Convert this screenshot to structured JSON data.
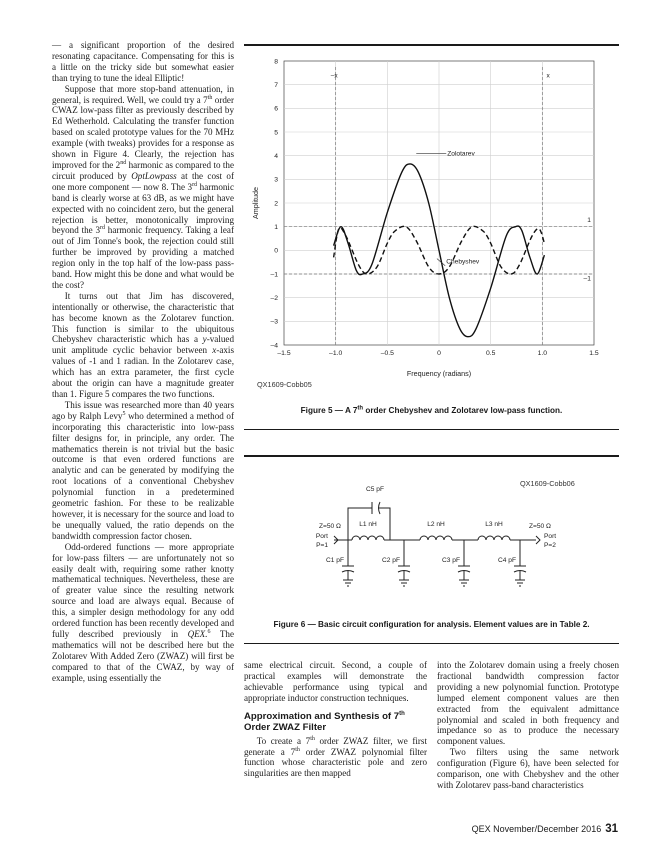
{
  "left_column": {
    "p1": "— a significant proportion of the desired resonating capacitance. Compensating for this is a little on the tricky side but somewhat easier than trying to tune the ideal Elliptic!",
    "p2a": "Suppose that more stop-band attenuation, in general, is required. Well, we could try a 7",
    "p2b": " order CWAZ low-pass filter as previously described by Ed Wetherhold. Calculating the transfer function based on scaled prototype values for the 70 MHz example (with tweaks) provides for a response as shown in Figure 4. Clearly, the rejection has improved for the 2",
    "p2c": " harmonic as compared to the circuit produced by ",
    "p2d": " at the cost of one more component — now 8. The 3",
    "p2e": " harmonic band is clearly worse at 63 dB, as we might have expected with no coincident zero, but the general rejection is better, monotonically improving beyond the 3",
    "p2f": " harmonic frequency. Taking a leaf out of Jim Tonne's book, the rejection could still further be improved by providing a matched region only in the top half of the low-pass pass-band. How might this be done and what would be the cost?",
    "p3a": "It turns out that Jim has discovered, intentionally or otherwise, the characteristic that has become known as the Zolotarev function. This function is similar to the ubiquitous Chebyshev characteristic which has a ",
    "p3b": "-valued unit amplitude cyclic behavior between ",
    "p3c": "-axis values of -1 and 1 radian. In the Zolotarev case, which has an extra parameter, the first cycle about the origin can have a magnitude greater than 1. Figure 5 compares the two functions.",
    "p4a": "This issue was researched more than 40 years ago by Ralph Levy",
    "p4b": " who determined a method of incorporating this characteristic into low-pass filter designs for, in principle, any order. The mathematics therein is not trivial but the basic outcome is that even ordered functions are analytic and can be generated by modifying the root locations of a conventional Chebyshev polynomial function in a predetermined geometric fashion. For these to be realizable however, it is necessary for the source and load to be unequally valued, the ratio depends on the bandwidth compression factor chosen.",
    "p5a": "Odd-ordered functions — more appropriate for low-pass filters — are unfortunately not so easily dealt with, requiring some rather knotty mathematical techniques. Nevertheless, these are of greater value since the resulting network source and load are always equal. Because of this, a simpler design methodology for any odd ordered function has been recently developed and fully described previously in ",
    "p5b": " The mathematics will not be described here but the Zolotarev With Added Zero (ZWAZ) will first be compared to that of the CWAZ, by way of example, using essentially the",
    "sup_th": "th",
    "sup_nd": "nd",
    "sup_rd": "rd",
    "sup_5": "5",
    "sup_6": "6",
    "optlowpass": "OptLowpass",
    "y_var": "y",
    "x_var": "x",
    "qex": "QEX."
  },
  "middle_column": {
    "p1": "same electrical circuit. Second, a couple of practical examples will demonstrate the achievable performance using typical and appropriate inductor construction techniques.",
    "heading_a": "Approximation and Synthesis of 7",
    "heading_sup": "th",
    "heading_b": " Order ZWAZ Filter",
    "p2a": "To create a 7",
    "p2b": " order ZWAZ filter, we first generate a 7",
    "p2c": " order ZWAZ polynomial filter function whose characteristic pole and zero singularities are then mapped"
  },
  "right_column": {
    "p1": "into the Zolotarev domain using a freely chosen fractional bandwidth compression factor providing a new polynomial function. Prototype lumped element component values are then extracted from the equivalent admittance polynomial and scaled in both frequency and impedance so as to produce the necessary component values.",
    "p2": "Two filters using the same network configuration (Figure 6), have been selected for comparison, one with Chebyshev and the other with Zolotarev pass-band characteristics"
  },
  "figure5": {
    "id": "QX1609-Cobb05",
    "caption_a": "Figure 5 — A 7",
    "caption_sup": "th",
    "caption_b": " order Chebyshev and Zolotarev low-pass function."
  },
  "figure6": {
    "id": "QX1609-Cobb06",
    "caption": "Figure 6 — Basic circuit configuration for analysis. Element values are in Table 2.",
    "c5": "C5 pF",
    "l1": "L1 nH",
    "l2": "L2 nH",
    "l3": "L3 nH",
    "c1": "C1 pF",
    "c2": "C2 pF",
    "c3": "C3 pF",
    "c4": "C4 pF",
    "port1_z": "Z=50 Ω",
    "port1_a": "Port",
    "port1_b": "P=1",
    "port2_z": "Z=50 Ω",
    "port2_a": "Port",
    "port2_b": "P=2"
  },
  "chart_data": {
    "type": "line",
    "title": "",
    "xlabel": "Frequency (radians)",
    "ylabel": "Amplitude",
    "xlim": [
      -1.5,
      1.5
    ],
    "ylim": [
      -4,
      8
    ],
    "x_ticks": [
      "–1.5",
      "–1.0",
      "–0.5",
      "0",
      "0.5",
      "1.0",
      "1.5"
    ],
    "y_ticks": [
      "8",
      "7",
      "6",
      "5",
      "4",
      "3",
      "2",
      "1",
      "0",
      "–1",
      "–2",
      "–3",
      "–4"
    ],
    "grid": true,
    "series": [
      {
        "name": "Zolotarev",
        "style": "solid",
        "x": [
          -1.02,
          -0.95,
          -0.88,
          -0.8,
          -0.74,
          -0.65,
          -0.5,
          -0.36,
          -0.28,
          -0.2,
          -0.1,
          0.0,
          0.1,
          0.2,
          0.28,
          0.36,
          0.5,
          0.65,
          0.74,
          0.8,
          0.88,
          0.95,
          1.02
        ],
        "y": [
          0.2,
          1.0,
          0.3,
          -0.85,
          -1.0,
          -0.6,
          1.6,
          3.3,
          3.65,
          3.3,
          2.0,
          0.0,
          -2.0,
          -3.3,
          -3.65,
          -3.3,
          -1.6,
          0.6,
          1.0,
          0.85,
          -0.3,
          -1.0,
          -0.2
        ]
      },
      {
        "name": "Chebyshev",
        "style": "dashed",
        "x": [
          -1.02,
          -0.97,
          -0.9,
          -0.78,
          -0.7,
          -0.6,
          -0.5,
          -0.43,
          -0.32,
          -0.22,
          -0.1,
          0.0,
          0.1,
          0.22,
          0.32,
          0.43,
          0.5,
          0.6,
          0.7,
          0.78,
          0.9,
          0.97,
          1.02
        ],
        "y": [
          -0.3,
          0.9,
          0.6,
          -0.6,
          -1.0,
          -0.7,
          0.3,
          0.8,
          1.0,
          0.4,
          -0.7,
          -1.0,
          -0.7,
          0.4,
          1.0,
          0.8,
          0.3,
          -0.7,
          -1.0,
          -0.6,
          0.6,
          0.9,
          0.3
        ]
      }
    ],
    "annotations": {
      "zolotarev_label": "Zolotarev",
      "chebyshev_label": "Chebyshev",
      "minus_x": "–x",
      "plus_x": "x",
      "one": "1",
      "minus_one": "–1"
    }
  },
  "footer": {
    "journal": "QEX  November/December 2016",
    "page": "31"
  }
}
